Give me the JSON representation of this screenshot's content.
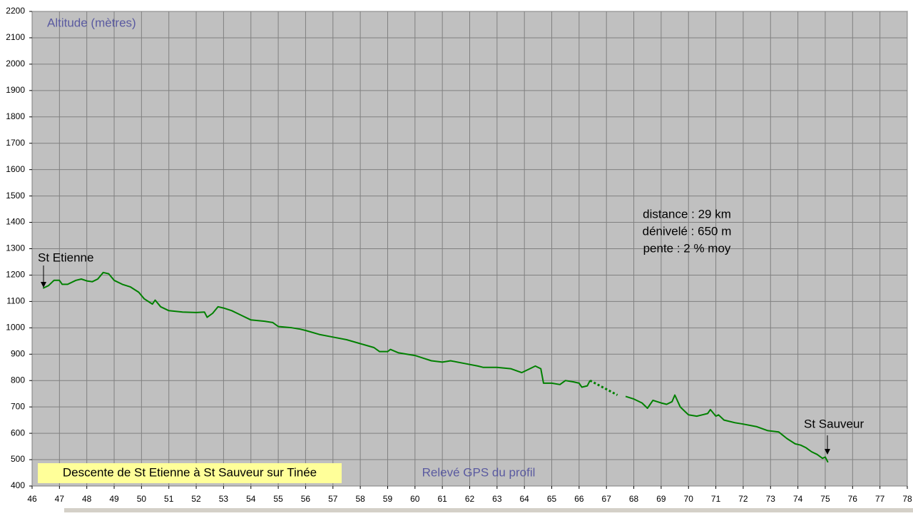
{
  "chart_data": {
    "type": "line",
    "title": "Descente de St Etienne à St Sauveur sur Tinée",
    "subtitle": "Relevé GPS du profil",
    "y_label": "Altitude (mètres)",
    "stats": [
      "distance : 29 km",
      "dénivelé : 650 m",
      "pente : 2 % moy"
    ],
    "annotations": [
      "St Etienne",
      "St Sauveur"
    ],
    "xlim": [
      46,
      78
    ],
    "xticks": [
      46,
      47,
      48,
      49,
      50,
      51,
      52,
      53,
      54,
      55,
      56,
      57,
      58,
      59,
      60,
      61,
      62,
      63,
      64,
      65,
      66,
      67,
      68,
      69,
      70,
      71,
      72,
      73,
      74,
      75,
      76,
      77,
      78
    ],
    "ylim": [
      400,
      2200
    ],
    "yticks": [
      400,
      500,
      600,
      700,
      800,
      900,
      1000,
      1100,
      1200,
      1300,
      1400,
      1500,
      1600,
      1700,
      1800,
      1900,
      2000,
      2100,
      2200
    ],
    "grid": true,
    "series": [
      {
        "color": "#008000",
        "style": "solid",
        "x": [
          46.4,
          46.6,
          46.8,
          47.0,
          47.1,
          47.3,
          47.6,
          47.8,
          48.0,
          48.2,
          48.4,
          48.6,
          48.8,
          49.0,
          49.3,
          49.6,
          49.9,
          50.1,
          50.4,
          50.5,
          50.7,
          51.0,
          51.5,
          52.0,
          52.3,
          52.4,
          52.6,
          52.8,
          53.0,
          53.3,
          53.6,
          54.0,
          54.5,
          54.8,
          55.0,
          55.5,
          55.8,
          56.0,
          56.5,
          57.0,
          57.5,
          58.0,
          58.5,
          58.7,
          59.0,
          59.1,
          59.4,
          60.0,
          60.3,
          60.6,
          61.0,
          61.3,
          61.8,
          62.3,
          62.5,
          63.0,
          63.5,
          63.9,
          64.2,
          64.4,
          64.6,
          64.7,
          65.0,
          65.3,
          65.5,
          65.8,
          66.0,
          66.1,
          66.3,
          66.4,
          67.4,
          67.7,
          68.0,
          68.3,
          68.5,
          68.7,
          69.0,
          69.2,
          69.4,
          69.5,
          69.7,
          69.9,
          70.0,
          70.3,
          70.5,
          70.7,
          70.8,
          71.0,
          71.1,
          71.3,
          71.7,
          72.0,
          72.5,
          72.9,
          73.3,
          73.6,
          73.9,
          74.1,
          74.3,
          74.5,
          74.7,
          74.9,
          75.0,
          75.1
        ],
        "values": [
          1150,
          1160,
          1180,
          1180,
          1165,
          1165,
          1180,
          1185,
          1178,
          1175,
          1185,
          1210,
          1205,
          1180,
          1165,
          1155,
          1135,
          1110,
          1090,
          1105,
          1080,
          1065,
          1060,
          1058,
          1060,
          1040,
          1055,
          1080,
          1075,
          1065,
          1050,
          1030,
          1025,
          1020,
          1005,
          1000,
          995,
          990,
          975,
          965,
          955,
          940,
          925,
          910,
          910,
          918,
          905,
          895,
          885,
          875,
          870,
          875,
          865,
          855,
          850,
          850,
          845,
          830,
          845,
          855,
          845,
          790,
          790,
          785,
          800,
          795,
          790,
          775,
          780,
          800,
          null,
          740,
          730,
          715,
          695,
          725,
          715,
          710,
          720,
          745,
          700,
          680,
          670,
          665,
          670,
          675,
          690,
          665,
          670,
          650,
          640,
          635,
          625,
          610,
          605,
          580,
          560,
          555,
          545,
          530,
          520,
          505,
          510,
          490
        ]
      },
      {
        "color": "#008000",
        "style": "dotted",
        "x": [
          66.4,
          67.4
        ],
        "values": [
          800,
          745
        ]
      }
    ]
  }
}
